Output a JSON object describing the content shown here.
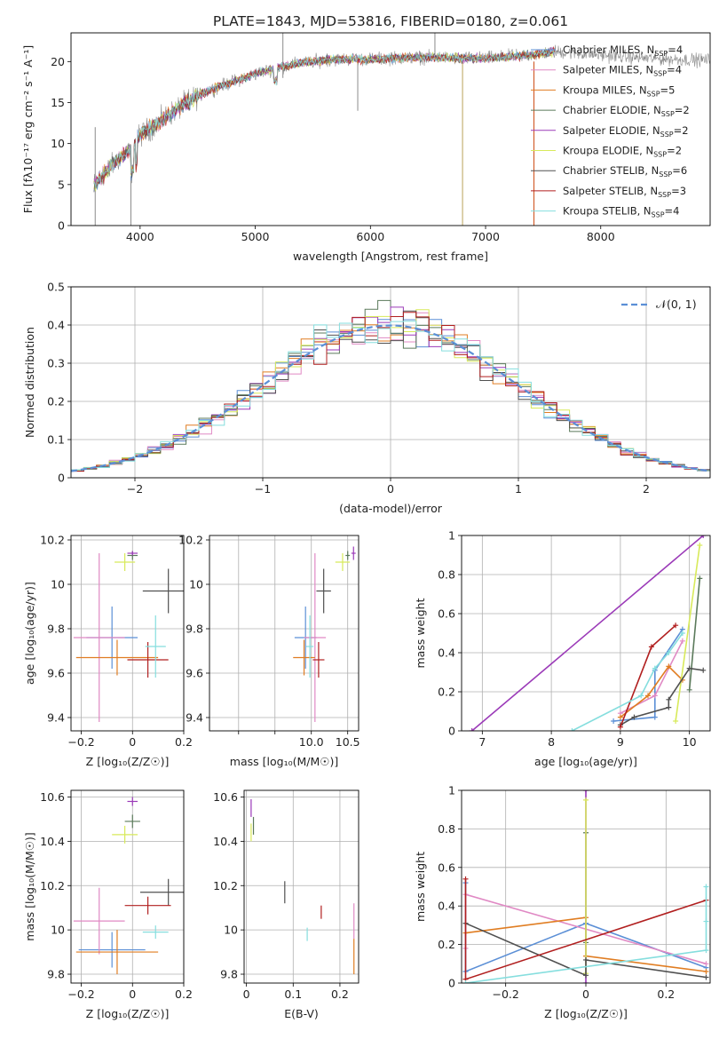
{
  "figure": {
    "title": "PLATE=1843, MJD=53816, FIBERID=0180, z=0.061"
  },
  "colors": {
    "Chabrier MILES": "#5b8fd6",
    "Salpeter MILES": "#e089c4",
    "Kroupa MILES": "#e07d22",
    "Chabrier ELODIE": "#5b7a5b",
    "Salpeter ELODIE": "#9b3ab8",
    "Kroupa ELODIE": "#d8ea5a",
    "Chabrier STELIB": "#505050",
    "Salpeter STELIB": "#b11f1f",
    "Kroupa STELIB": "#85dede"
  },
  "chart_data": [
    {
      "id": "spectrum",
      "type": "line",
      "xlabel": "wavelength [Angstrom, rest frame]",
      "ylabel": "Flux [fλ10⁻¹⁷ erg cm⁻² s⁻¹ A⁻¹]",
      "xlim": [
        3400,
        8950
      ],
      "ylim": [
        0,
        23.5
      ],
      "xticks": [
        4000,
        5000,
        6000,
        7000,
        8000
      ],
      "yticks": [
        0,
        5,
        10,
        15,
        20
      ],
      "grid": false,
      "legend_position": "right",
      "legend": [
        {
          "name": "Chabrier MILES",
          "nssp": 4
        },
        {
          "name": "Salpeter MILES",
          "nssp": 4
        },
        {
          "name": "Kroupa MILES",
          "nssp": 5
        },
        {
          "name": "Chabrier ELODIE",
          "nssp": 2
        },
        {
          "name": "Salpeter ELODIE",
          "nssp": 2
        },
        {
          "name": "Kroupa ELODIE",
          "nssp": 2
        },
        {
          "name": "Chabrier STELIB",
          "nssp": 6
        },
        {
          "name": "Salpeter STELIB",
          "nssp": 3
        },
        {
          "name": "Kroupa STELIB",
          "nssp": 4
        }
      ],
      "continuum": {
        "x": [
          3600,
          3700,
          3800,
          3900,
          4000,
          4100,
          4200,
          4300,
          4400,
          4600,
          4800,
          5000,
          5200,
          5400,
          5600,
          5800,
          6000,
          6200,
          6400,
          6600,
          6800,
          7000,
          7200,
          7400,
          7600,
          7800,
          8000,
          8200,
          8400,
          8600,
          8800,
          8950
        ],
        "y": [
          5,
          6.5,
          8,
          9,
          11,
          12,
          13,
          14,
          15,
          16.5,
          17.5,
          18.5,
          19.3,
          19.8,
          20.2,
          20.3,
          20.3,
          20.4,
          20.5,
          20.5,
          20.4,
          20.4,
          20.6,
          20.8,
          21.2,
          21.0,
          20.8,
          20.6,
          20.4,
          20.3,
          20.2,
          20.2
        ]
      },
      "models_x_range": [
        3600,
        7600
      ],
      "data_x_range": [
        3600,
        8950
      ]
    },
    {
      "id": "residuals",
      "type": "histogram",
      "xlabel": "(data-model)/error",
      "ylabel": "Normed distribution",
      "xlim": [
        -2.5,
        2.5
      ],
      "ylim": [
        0,
        0.5
      ],
      "xticks": [
        -2,
        -1,
        0,
        1,
        2
      ],
      "yticks": [
        0.0,
        0.1,
        0.2,
        0.3,
        0.4,
        0.5
      ],
      "grid": true,
      "legend_position": "top-right",
      "reference_label": "𝒩(0, 1)",
      "bin_width": 0.1
    },
    {
      "id": "age_vs_Z",
      "type": "errorbar",
      "xlabel": "Z [log₁₀(Z/Z☉)]",
      "ylabel": "age  [log₁₀(age/yr)]",
      "xlim": [
        -0.24,
        0.2
      ],
      "ylim": [
        9.34,
        10.22
      ],
      "xticks": [
        -0.2,
        0.0,
        0.2
      ],
      "yticks": [
        9.4,
        9.6,
        9.8,
        10.0,
        10.2
      ],
      "grid": true,
      "points": [
        {
          "series": "Chabrier MILES",
          "x": -0.08,
          "xerr": 0.1,
          "y": 9.76,
          "yerr": 0.14
        },
        {
          "series": "Salpeter MILES",
          "x": -0.13,
          "xerr": 0.1,
          "y": 9.76,
          "yerr": 0.38
        },
        {
          "series": "Kroupa MILES",
          "x": -0.06,
          "xerr": 0.16,
          "y": 9.67,
          "yerr": 0.08
        },
        {
          "series": "Chabrier ELODIE",
          "x": 0.0,
          "xerr": 0.02,
          "y": 10.13,
          "yerr": 0.02
        },
        {
          "series": "Salpeter ELODIE",
          "x": 0.0,
          "xerr": 0.02,
          "y": 10.14,
          "yerr": 0.01
        },
        {
          "series": "Kroupa ELODIE",
          "x": -0.03,
          "xerr": 0.04,
          "y": 10.1,
          "yerr": 0.04
        },
        {
          "series": "Chabrier STELIB",
          "x": 0.14,
          "xerr": 0.1,
          "y": 9.97,
          "yerr": 0.1
        },
        {
          "series": "Salpeter STELIB",
          "x": 0.06,
          "xerr": 0.08,
          "y": 9.66,
          "yerr": 0.08
        },
        {
          "series": "Kroupa STELIB",
          "x": 0.09,
          "xerr": 0.04,
          "y": 9.72,
          "yerr": 0.14
        }
      ]
    },
    {
      "id": "age_vs_mass",
      "type": "errorbar",
      "xlabel": "mass [log₁₀(M/M☉)]",
      "ylabel": "",
      "xlim": [
        8.6,
        10.65
      ],
      "ylim": [
        9.34,
        10.22
      ],
      "xticks": [
        9.0,
        9.5,
        10.0,
        10.5
      ],
      "xticklabels": [
        "",
        "",
        "10.0",
        "10.5"
      ],
      "yticks": [
        9.4,
        9.6,
        9.8,
        10.0,
        10.2
      ],
      "grid": true,
      "points": [
        {
          "series": "Chabrier MILES",
          "x": 9.92,
          "xerr": 0.15,
          "y": 9.76,
          "yerr": 0.14
        },
        {
          "series": "Salpeter MILES",
          "x": 10.05,
          "xerr": 0.15,
          "y": 9.76,
          "yerr": 0.38
        },
        {
          "series": "Kroupa MILES",
          "x": 9.9,
          "xerr": 0.15,
          "y": 9.67,
          "yerr": 0.08
        },
        {
          "series": "Chabrier ELODIE",
          "x": 10.5,
          "xerr": 0.03,
          "y": 10.13,
          "yerr": 0.02
        },
        {
          "series": "Salpeter ELODIE",
          "x": 10.58,
          "xerr": 0.03,
          "y": 10.14,
          "yerr": 0.03
        },
        {
          "series": "Kroupa ELODIE",
          "x": 10.43,
          "xerr": 0.1,
          "y": 10.1,
          "yerr": 0.04
        },
        {
          "series": "Chabrier STELIB",
          "x": 10.17,
          "xerr": 0.1,
          "y": 9.97,
          "yerr": 0.1
        },
        {
          "series": "Salpeter STELIB",
          "x": 10.1,
          "xerr": 0.08,
          "y": 9.66,
          "yerr": 0.08
        },
        {
          "series": "Kroupa STELIB",
          "x": 9.98,
          "xerr": 0.05,
          "y": 9.72,
          "yerr": 0.14
        }
      ]
    },
    {
      "id": "massweight_vs_age",
      "type": "line",
      "xlabel": "age  [log₁₀(age/yr)]",
      "ylabel": "mass weight",
      "xlim": [
        6.7,
        10.3
      ],
      "ylim": [
        0,
        1.0
      ],
      "xticks": [
        7,
        8,
        9,
        10
      ],
      "yticks": [
        0.0,
        0.2,
        0.4,
        0.6,
        0.8,
        1.0
      ],
      "grid": true,
      "series": [
        {
          "name": "Chabrier MILES",
          "x": [
            8.9,
            9.5,
            9.5,
            9.9
          ],
          "y": [
            0.05,
            0.07,
            0.31,
            0.52
          ]
        },
        {
          "name": "Salpeter MILES",
          "x": [
            9.0,
            9.5,
            9.9
          ],
          "y": [
            0.09,
            0.18,
            0.46
          ]
        },
        {
          "name": "Kroupa MILES",
          "x": [
            9.0,
            9.4,
            9.7,
            9.9
          ],
          "y": [
            0.07,
            0.18,
            0.33,
            0.26
          ]
        },
        {
          "name": "Chabrier ELODIE",
          "x": [
            10.0,
            10.15
          ],
          "y": [
            0.21,
            0.78
          ]
        },
        {
          "name": "Salpeter ELODIE",
          "x": [
            6.85,
            10.2
          ],
          "y": [
            0.0,
            1.0
          ]
        },
        {
          "name": "Kroupa ELODIE",
          "x": [
            9.8,
            10.15
          ],
          "y": [
            0.05,
            0.95
          ]
        },
        {
          "name": "Chabrier STELIB",
          "x": [
            9.0,
            9.2,
            9.7,
            9.7,
            10.0,
            10.2
          ],
          "y": [
            0.03,
            0.07,
            0.12,
            0.16,
            0.32,
            0.31
          ]
        },
        {
          "name": "Salpeter STELIB",
          "x": [
            9.0,
            9.45,
            9.8
          ],
          "y": [
            0.02,
            0.43,
            0.54
          ]
        },
        {
          "name": "Kroupa STELIB",
          "x": [
            8.3,
            9.3,
            9.5,
            9.7,
            9.9
          ],
          "y": [
            0.0,
            0.18,
            0.32,
            0.4,
            0.5
          ]
        }
      ]
    },
    {
      "id": "mass_vs_Z",
      "type": "errorbar",
      "xlabel": "Z [log₁₀(Z/Z☉)]",
      "ylabel": "mass [log₁₀(M/M☉)]",
      "xlim": [
        -0.24,
        0.2
      ],
      "ylim": [
        9.76,
        10.63
      ],
      "xticks": [
        -0.2,
        0.0,
        0.2
      ],
      "yticks": [
        9.8,
        10.0,
        10.2,
        10.4,
        10.6
      ],
      "grid": true,
      "points": [
        {
          "series": "Chabrier MILES",
          "x": -0.08,
          "xerr": 0.13,
          "y": 9.91,
          "yerr": 0.08
        },
        {
          "series": "Salpeter MILES",
          "x": -0.13,
          "xerr": 0.1,
          "y": 10.04,
          "yerr": 0.15
        },
        {
          "series": "Kroupa MILES",
          "x": -0.06,
          "xerr": 0.16,
          "y": 9.9,
          "yerr": 0.1
        },
        {
          "series": "Chabrier ELODIE",
          "x": 0.0,
          "xerr": 0.03,
          "y": 10.49,
          "yerr": 0.03
        },
        {
          "series": "Salpeter ELODIE",
          "x": 0.0,
          "xerr": 0.02,
          "y": 10.58,
          "yerr": 0.02
        },
        {
          "series": "Kroupa ELODIE",
          "x": -0.03,
          "xerr": 0.05,
          "y": 10.43,
          "yerr": 0.04
        },
        {
          "series": "Chabrier STELIB",
          "x": 0.14,
          "xerr": 0.11,
          "y": 10.17,
          "yerr": 0.06
        },
        {
          "series": "Salpeter STELIB",
          "x": 0.06,
          "xerr": 0.09,
          "y": 10.11,
          "yerr": 0.04
        },
        {
          "series": "Kroupa STELIB",
          "x": 0.09,
          "xerr": 0.05,
          "y": 9.99,
          "yerr": 0.03
        }
      ]
    },
    {
      "id": "mass_vs_EBV",
      "type": "errorbar",
      "xlabel": "E(B-V)",
      "ylabel": "",
      "xlim": [
        -0.005,
        0.24
      ],
      "ylim": [
        9.76,
        10.63
      ],
      "xticks": [
        0.0,
        0.1,
        0.2
      ],
      "yticks": [
        9.8,
        10.0,
        10.2,
        10.4,
        10.6
      ],
      "grid": true,
      "points": [
        {
          "series": "Salpeter MILES",
          "x": 0.23,
          "xerr": 0.0,
          "y": 10.04,
          "yerr": 0.08
        },
        {
          "series": "Kroupa MILES",
          "x": 0.23,
          "xerr": 0.0,
          "y": 9.88,
          "yerr": 0.08
        },
        {
          "series": "Chabrier ELODIE",
          "x": 0.015,
          "xerr": 0.0,
          "y": 10.47,
          "yerr": 0.04
        },
        {
          "series": "Salpeter ELODIE",
          "x": 0.01,
          "xerr": 0.0,
          "y": 10.55,
          "yerr": 0.04
        },
        {
          "series": "Kroupa ELODIE",
          "x": 0.01,
          "xerr": 0.0,
          "y": 10.44,
          "yerr": 0.04
        },
        {
          "series": "Chabrier STELIB",
          "x": 0.082,
          "xerr": 0.0,
          "y": 10.17,
          "yerr": 0.05
        },
        {
          "series": "Salpeter STELIB",
          "x": 0.16,
          "xerr": 0.0,
          "y": 10.08,
          "yerr": 0.03
        },
        {
          "series": "Kroupa STELIB",
          "x": 0.13,
          "xerr": 0.0,
          "y": 9.98,
          "yerr": 0.03
        }
      ]
    },
    {
      "id": "massweight_vs_Z",
      "type": "line",
      "xlabel": "Z [log₁₀(Z/Z☉)]",
      "ylabel": "mass weight",
      "xlim": [
        -0.31,
        0.31
      ],
      "ylim": [
        0,
        1.0
      ],
      "xticks": [
        -0.2,
        0.0,
        0.2
      ],
      "yticks": [
        0.0,
        0.2,
        0.4,
        0.6,
        0.8,
        1.0
      ],
      "grid": true,
      "series": [
        {
          "name": "Chabrier MILES",
          "x": [
            -0.3,
            -0.3,
            0.0,
            0.3
          ],
          "y": [
            0.52,
            0.06,
            0.31,
            0.08
          ]
        },
        {
          "name": "Salpeter MILES",
          "x": [
            -0.3,
            -0.3,
            0.3
          ],
          "y": [
            0.18,
            0.46,
            0.1
          ]
        },
        {
          "name": "Kroupa MILES",
          "x": [
            -0.3,
            0.0,
            0.0,
            0.3
          ],
          "y": [
            0.26,
            0.34,
            0.14,
            0.06
          ]
        },
        {
          "name": "Chabrier ELODIE",
          "x": [
            0.0,
            0.0
          ],
          "y": [
            0.21,
            0.78
          ]
        },
        {
          "name": "Salpeter ELODIE",
          "x": [
            0.0,
            0.0
          ],
          "y": [
            0.0,
            1.0
          ]
        },
        {
          "name": "Kroupa ELODIE",
          "x": [
            0.0,
            0.0
          ],
          "y": [
            0.05,
            0.95
          ]
        },
        {
          "name": "Chabrier STELIB",
          "x": [
            -0.3,
            0.0,
            0.0,
            0.3
          ],
          "y": [
            0.31,
            0.04,
            0.12,
            0.03
          ]
        },
        {
          "name": "Salpeter STELIB",
          "x": [
            -0.3,
            -0.3,
            0.3
          ],
          "y": [
            0.54,
            0.02,
            0.43
          ]
        },
        {
          "name": "Kroupa STELIB",
          "x": [
            -0.3,
            0.3,
            0.3,
            0.3
          ],
          "y": [
            0.0,
            0.17,
            0.32,
            0.5
          ]
        }
      ]
    }
  ]
}
